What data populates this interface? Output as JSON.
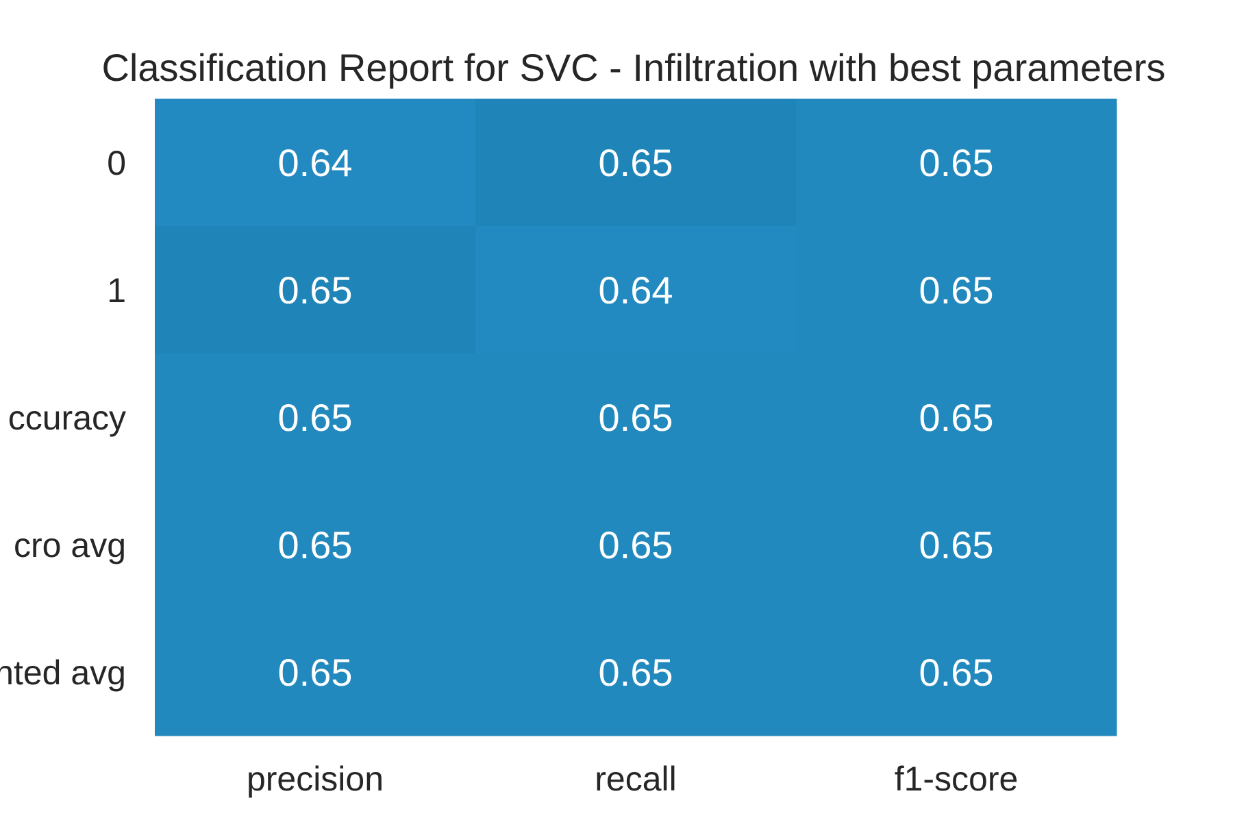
{
  "chart_data": {
    "type": "heatmap",
    "title": "Classification Report for SVC - Infiltration with best parameters",
    "xlabel": "",
    "ylabel": "",
    "columns": [
      "precision",
      "recall",
      "f1-score"
    ],
    "rows": [
      "0",
      "1",
      "accuracy",
      "macro avg",
      "weighted avg"
    ],
    "row_labels_visible": [
      "0",
      "1",
      "ccuracy",
      "cro avg",
      "nted avg"
    ],
    "values": [
      [
        0.64,
        0.65,
        0.65
      ],
      [
        0.65,
        0.64,
        0.65
      ],
      [
        0.65,
        0.65,
        0.65
      ],
      [
        0.65,
        0.65,
        0.65
      ],
      [
        0.65,
        0.65,
        0.65
      ]
    ],
    "value_labels": [
      [
        "0.64",
        "0.65",
        "0.65"
      ],
      [
        "0.65",
        "0.64",
        "0.65"
      ],
      [
        "0.65",
        "0.65",
        "0.65"
      ],
      [
        "0.65",
        "0.65",
        "0.65"
      ],
      [
        "0.65",
        "0.65",
        "0.65"
      ]
    ],
    "colors": {
      "low": "#228ac0",
      "mid": "#2189bd",
      "high": "#1f85b8",
      "annotation": "#ffffff",
      "text": "#262626"
    },
    "grid": false,
    "legend": "none"
  }
}
